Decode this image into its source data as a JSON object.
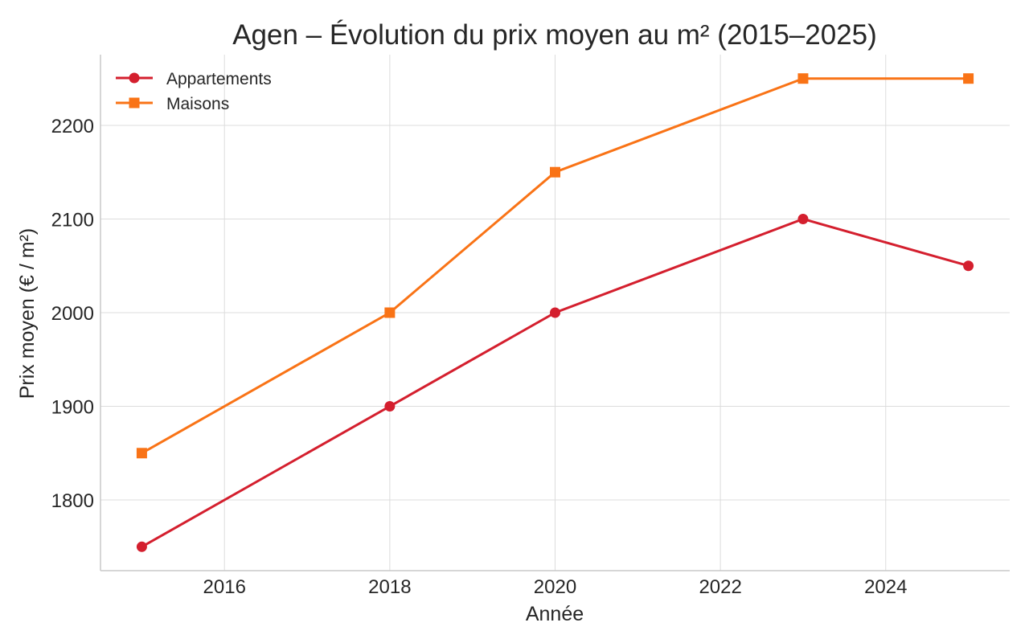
{
  "chart_data": {
    "type": "line",
    "title": "Agen – Évolution du prix moyen au m² (2015–2025)",
    "xlabel": "Année",
    "ylabel": "Prix moyen (€ / m²)",
    "xlim": [
      2014.5,
      2025.5
    ],
    "ylim": [
      1724.5,
      2275.5
    ],
    "xticks": [
      2016,
      2018,
      2020,
      2022,
      2024
    ],
    "yticks": [
      1800,
      1900,
      2000,
      2100,
      2200
    ],
    "grid": true,
    "legend_position": "top-left",
    "series": [
      {
        "name": "Appartements",
        "color": "#d41f2e",
        "marker": "circle",
        "x": [
          2015,
          2018,
          2020,
          2023,
          2025
        ],
        "y": [
          1750,
          1900,
          2000,
          2100,
          2050
        ]
      },
      {
        "name": "Maisons",
        "color": "#f97316",
        "marker": "square",
        "x": [
          2015,
          2018,
          2020,
          2023,
          2025
        ],
        "y": [
          1850,
          2000,
          2150,
          2250,
          2250
        ]
      }
    ]
  }
}
